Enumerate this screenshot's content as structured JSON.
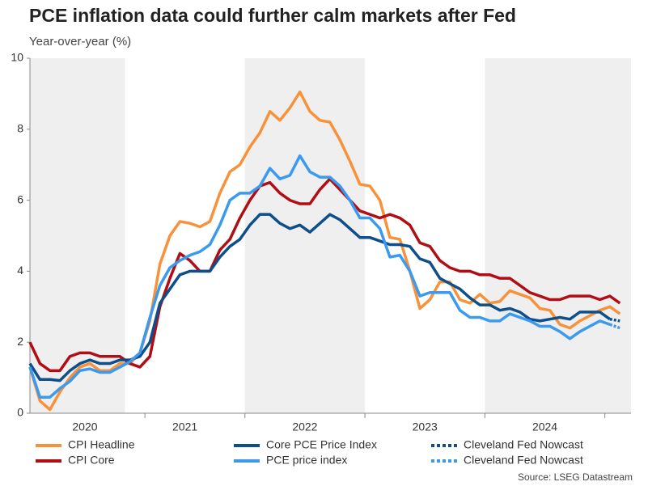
{
  "chart_data": {
    "type": "line",
    "title": "PCE inflation data could further calm markets after Fed",
    "subtitle": "Year-over-year (%)",
    "source": "Source: LSEG Datastream",
    "categories": [
      null,
      null,
      null,
      null,
      null,
      "2020",
      null,
      null,
      null,
      null,
      null,
      null,
      null,
      null,
      null,
      "2021",
      null,
      null,
      null,
      null,
      null,
      null,
      null,
      null,
      null,
      null,
      null,
      "2022",
      null,
      null,
      null,
      null,
      null,
      null,
      null,
      null,
      null,
      null,
      null,
      "2023",
      null,
      null,
      null,
      null,
      null,
      null,
      null,
      null,
      null,
      null,
      null,
      "2024",
      null,
      null,
      null,
      null,
      null,
      null,
      null,
      null
    ],
    "ylim": [
      0,
      10
    ],
    "yticks": [
      0,
      2,
      4,
      6,
      8,
      10
    ],
    "grid": false,
    "series": [
      {
        "name": "CPI Headline",
        "color": "#f7923a",
        "values": [
          1.3,
          0.35,
          0.1,
          0.6,
          1.0,
          1.3,
          1.4,
          1.2,
          1.2,
          1.4,
          1.4,
          1.7,
          2.6,
          4.2,
          5.0,
          5.4,
          5.35,
          5.25,
          5.4,
          6.2,
          6.8,
          7.0,
          7.5,
          7.9,
          8.5,
          8.25,
          8.6,
          9.05,
          8.5,
          8.25,
          8.2,
          7.7,
          7.1,
          6.45,
          6.4,
          6.0,
          4.95,
          4.9,
          4.0,
          2.95,
          3.2,
          3.7,
          3.7,
          3.2,
          3.1,
          3.35,
          3.1,
          3.15,
          3.45,
          3.35,
          3.25,
          2.95,
          2.9,
          2.5,
          2.4,
          2.6,
          2.75,
          2.9,
          3.0,
          2.8
        ]
      },
      {
        "name": "CPI Core",
        "color": "#b00d14",
        "values": [
          2.0,
          1.4,
          1.2,
          1.2,
          1.6,
          1.7,
          1.7,
          1.6,
          1.6,
          1.6,
          1.4,
          1.3,
          1.6,
          3.0,
          3.8,
          4.5,
          4.3,
          4.0,
          4.0,
          4.6,
          4.9,
          5.5,
          6.0,
          6.4,
          6.5,
          6.2,
          6.0,
          5.9,
          5.9,
          6.3,
          6.6,
          6.3,
          6.0,
          5.7,
          5.6,
          5.5,
          5.6,
          5.5,
          5.3,
          4.8,
          4.7,
          4.3,
          4.1,
          4.0,
          4.0,
          3.9,
          3.9,
          3.8,
          3.8,
          3.6,
          3.4,
          3.3,
          3.2,
          3.2,
          3.3,
          3.3,
          3.3,
          3.2,
          3.3,
          3.1
        ]
      },
      {
        "name": "Core PCE Price Index",
        "color": "#0e4e8a",
        "values": [
          1.4,
          0.95,
          0.95,
          0.92,
          1.2,
          1.4,
          1.5,
          1.4,
          1.4,
          1.5,
          1.5,
          1.6,
          2.0,
          3.1,
          3.5,
          3.9,
          4.0,
          4.0,
          4.0,
          4.4,
          4.7,
          4.9,
          5.3,
          5.6,
          5.6,
          5.35,
          5.2,
          5.3,
          5.1,
          5.35,
          5.6,
          5.45,
          5.2,
          4.95,
          4.95,
          4.85,
          4.75,
          4.75,
          4.7,
          4.35,
          4.25,
          3.8,
          3.65,
          3.5,
          3.25,
          3.05,
          3.05,
          2.9,
          2.95,
          2.85,
          2.65,
          2.6,
          2.65,
          2.7,
          2.65,
          2.85,
          2.85,
          2.85,
          2.65,
          null
        ]
      },
      {
        "name": "PCE price index",
        "color": "#3a9af0",
        "values": [
          1.3,
          0.45,
          0.45,
          0.7,
          0.9,
          1.2,
          1.25,
          1.15,
          1.15,
          1.3,
          1.45,
          1.7,
          2.7,
          3.6,
          4.1,
          4.3,
          4.45,
          4.55,
          4.75,
          5.3,
          6.0,
          6.2,
          6.2,
          6.4,
          6.9,
          6.6,
          6.7,
          7.25,
          6.8,
          6.65,
          6.65,
          6.4,
          6.0,
          5.5,
          5.5,
          5.2,
          4.4,
          4.45,
          4.0,
          3.3,
          3.4,
          3.4,
          3.4,
          2.9,
          2.7,
          2.7,
          2.6,
          2.6,
          2.8,
          2.7,
          2.6,
          2.45,
          2.45,
          2.3,
          2.1,
          2.3,
          2.45,
          2.6,
          2.5,
          null
        ]
      },
      {
        "name": "Cleveland Fed Nowcast",
        "color": "#0e4e8a",
        "line_style": "dotted",
        "values": [
          null,
          null,
          null,
          null,
          null,
          null,
          null,
          null,
          null,
          null,
          null,
          null,
          null,
          null,
          null,
          null,
          null,
          null,
          null,
          null,
          null,
          null,
          null,
          null,
          null,
          null,
          null,
          null,
          null,
          null,
          null,
          null,
          null,
          null,
          null,
          null,
          null,
          null,
          null,
          null,
          null,
          null,
          null,
          null,
          null,
          null,
          null,
          null,
          null,
          null,
          null,
          null,
          null,
          null,
          null,
          null,
          null,
          null,
          2.65,
          2.6
        ]
      },
      {
        "name": "Cleveland Fed Nowcast",
        "color": "#3a9af0",
        "line_style": "dotted",
        "values": [
          null,
          null,
          null,
          null,
          null,
          null,
          null,
          null,
          null,
          null,
          null,
          null,
          null,
          null,
          null,
          null,
          null,
          null,
          null,
          null,
          null,
          null,
          null,
          null,
          null,
          null,
          null,
          null,
          null,
          null,
          null,
          null,
          null,
          null,
          null,
          null,
          null,
          null,
          null,
          null,
          null,
          null,
          null,
          null,
          null,
          null,
          null,
          null,
          null,
          null,
          null,
          null,
          null,
          null,
          null,
          null,
          null,
          null,
          2.5,
          2.4
        ]
      }
    ]
  }
}
